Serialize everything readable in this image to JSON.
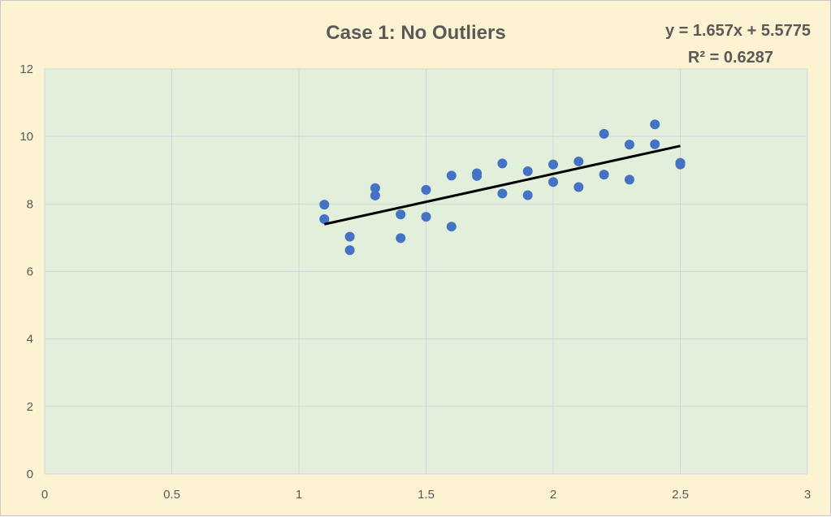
{
  "chart_data": {
    "type": "scatter",
    "title": "Case 1: No Outliers",
    "xlabel": "",
    "ylabel": "",
    "xlim": [
      0,
      3
    ],
    "ylim": [
      0,
      12
    ],
    "x_ticks": [
      "0",
      "0.5",
      "1",
      "1.5",
      "2",
      "2.5",
      "3"
    ],
    "y_ticks": [
      "0",
      "2",
      "4",
      "6",
      "8",
      "10",
      "12"
    ],
    "grid": true,
    "legend": "none",
    "points": [
      {
        "x": 1.1,
        "y": 7.98
      },
      {
        "x": 1.1,
        "y": 7.55
      },
      {
        "x": 1.2,
        "y": 7.03
      },
      {
        "x": 1.2,
        "y": 6.63
      },
      {
        "x": 1.3,
        "y": 8.47
      },
      {
        "x": 1.3,
        "y": 8.25
      },
      {
        "x": 1.4,
        "y": 7.69
      },
      {
        "x": 1.4,
        "y": 6.99
      },
      {
        "x": 1.5,
        "y": 8.42
      },
      {
        "x": 1.5,
        "y": 7.62
      },
      {
        "x": 1.6,
        "y": 8.84
      },
      {
        "x": 1.6,
        "y": 7.33
      },
      {
        "x": 1.7,
        "y": 8.91
      },
      {
        "x": 1.7,
        "y": 8.83
      },
      {
        "x": 1.8,
        "y": 9.2
      },
      {
        "x": 1.8,
        "y": 8.31
      },
      {
        "x": 1.9,
        "y": 8.97
      },
      {
        "x": 1.9,
        "y": 8.26
      },
      {
        "x": 2.0,
        "y": 9.17
      },
      {
        "x": 2.0,
        "y": 8.65
      },
      {
        "x": 2.1,
        "y": 9.26
      },
      {
        "x": 2.1,
        "y": 8.5
      },
      {
        "x": 2.2,
        "y": 10.08
      },
      {
        "x": 2.2,
        "y": 8.87
      },
      {
        "x": 2.3,
        "y": 9.76
      },
      {
        "x": 2.3,
        "y": 8.72
      },
      {
        "x": 2.4,
        "y": 10.36
      },
      {
        "x": 2.4,
        "y": 9.77
      },
      {
        "x": 2.5,
        "y": 9.22
      },
      {
        "x": 2.5,
        "y": 9.17
      }
    ],
    "trendline": {
      "type": "linear",
      "slope": 1.657,
      "intercept": 5.5775,
      "x_range": [
        1.1,
        2.5
      ],
      "equation_label": "y = 1.657x + 5.5775",
      "r2_label": "R² = 0.6287"
    },
    "colors": {
      "outer_background": "#fdf2d1",
      "plot_background": "#e2efda",
      "grid": "#d0d7dc",
      "point": "#4472c4",
      "trendline": "#000000",
      "text": "#595959"
    }
  }
}
